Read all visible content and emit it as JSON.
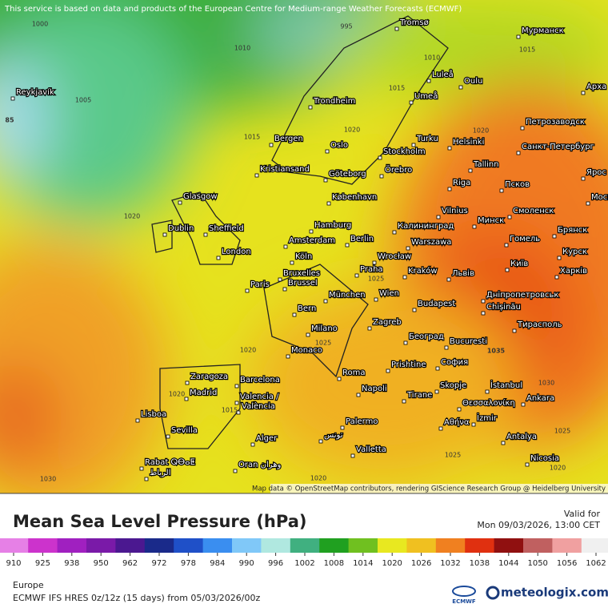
{
  "header": {
    "notice": "This service is based on data and products of the European Centre for Medium-range Weather Forecasts (ECMWF)",
    "attribution": "Map data © OpenStreetMap contributors, rendering GIScience Research Group @ Heidelberg University"
  },
  "map": {
    "cities": [
      "Reykjavík",
      "Tromsø",
      "Мурманск",
      "Luleå",
      "Oulu",
      "Арха",
      "Trondheim",
      "Umeå",
      "Bergen",
      "Oslo",
      "Turku",
      "Helsinki",
      "Петрозаводск",
      "Санкт-Петербург",
      "Stockholm",
      "Tallinn",
      "Kristiansand",
      "Göteborg",
      "Örebro",
      "Riga",
      "Псков",
      "Ярос",
      "Glasgow",
      "København",
      "Москва",
      "Vilnius",
      "Смоленск",
      "Dublin",
      "Sheffield",
      "Hamburg",
      "Калининград",
      "Минск",
      "Брянск",
      "Amsterdam",
      "Berlin",
      "Warszawa",
      "Гомель",
      "London",
      "Köln",
      "Wrocław",
      "Курск",
      "Bruxelles",
      "Brussel",
      "Paris",
      "Praha",
      "Kraków",
      "Львів",
      "Київ",
      "Харків",
      "Wien",
      "München",
      "Дніпропетровськ",
      "Bern",
      "Budapest",
      "Chișinău",
      "Milano",
      "Zagreb",
      "Београд",
      "Тирасполь",
      "Bucuresti",
      "Monaco",
      "София",
      "Zaragoza",
      "Barcelona",
      "Roma",
      "Prishtine",
      "Madrid",
      "Napoli",
      "Tirane",
      "Skopje",
      "İstanbul",
      "Ankara",
      "Valencia /",
      "València",
      "Θεσσαλονίκη",
      "Lisboa",
      "Sevilla",
      "Palermo",
      "Αθήνα",
      "İzmir",
      "Alger",
      "تونس",
      "Antalya",
      "Valletta",
      "Nicosia",
      "Rabat ⵕⴱⴰⵟ",
      "الرباط",
      "Oran وهران"
    ],
    "isobar_labels": [
      "1000",
      "995",
      "1010",
      "1005",
      "1010",
      "1015",
      "1015",
      "1020",
      "1020",
      "1015",
      "85",
      "1020",
      "1025",
      "1020",
      "1025",
      "1035",
      "1020",
      "1015",
      "1030",
      "1025",
      "1030",
      "1025",
      "1020",
      "1020"
    ]
  },
  "legend": {
    "title": "Mean Sea Level Pressure (hPa)",
    "valid_label": "Valid for",
    "valid_time": "Mon 09/03/2026, 13:00 CET",
    "ticks": [
      910,
      925,
      938,
      950,
      962,
      972,
      978,
      984,
      990,
      996,
      1002,
      1008,
      1014,
      1020,
      1026,
      1032,
      1038,
      1044,
      1050,
      1056,
      1062
    ],
    "colors": [
      "#e680e6",
      "#cc33cc",
      "#a020c0",
      "#7a1aa8",
      "#4b1890",
      "#1a2a8a",
      "#1f50c8",
      "#3a8ef0",
      "#80c8f8",
      "#b0e8e0",
      "#40b080",
      "#20a020",
      "#70c020",
      "#e8e820",
      "#f0c020",
      "#f08020",
      "#e03010",
      "#901010",
      "#c06060",
      "#f0a0a0",
      "#f0f0f0"
    ]
  },
  "footer": {
    "region": "Europe",
    "model": "ECMWF IFS HRES 0z/12z (15 days) from 05/03/2026/00z",
    "ecmwf": "ECMWF",
    "brand": "meteologix.com"
  }
}
